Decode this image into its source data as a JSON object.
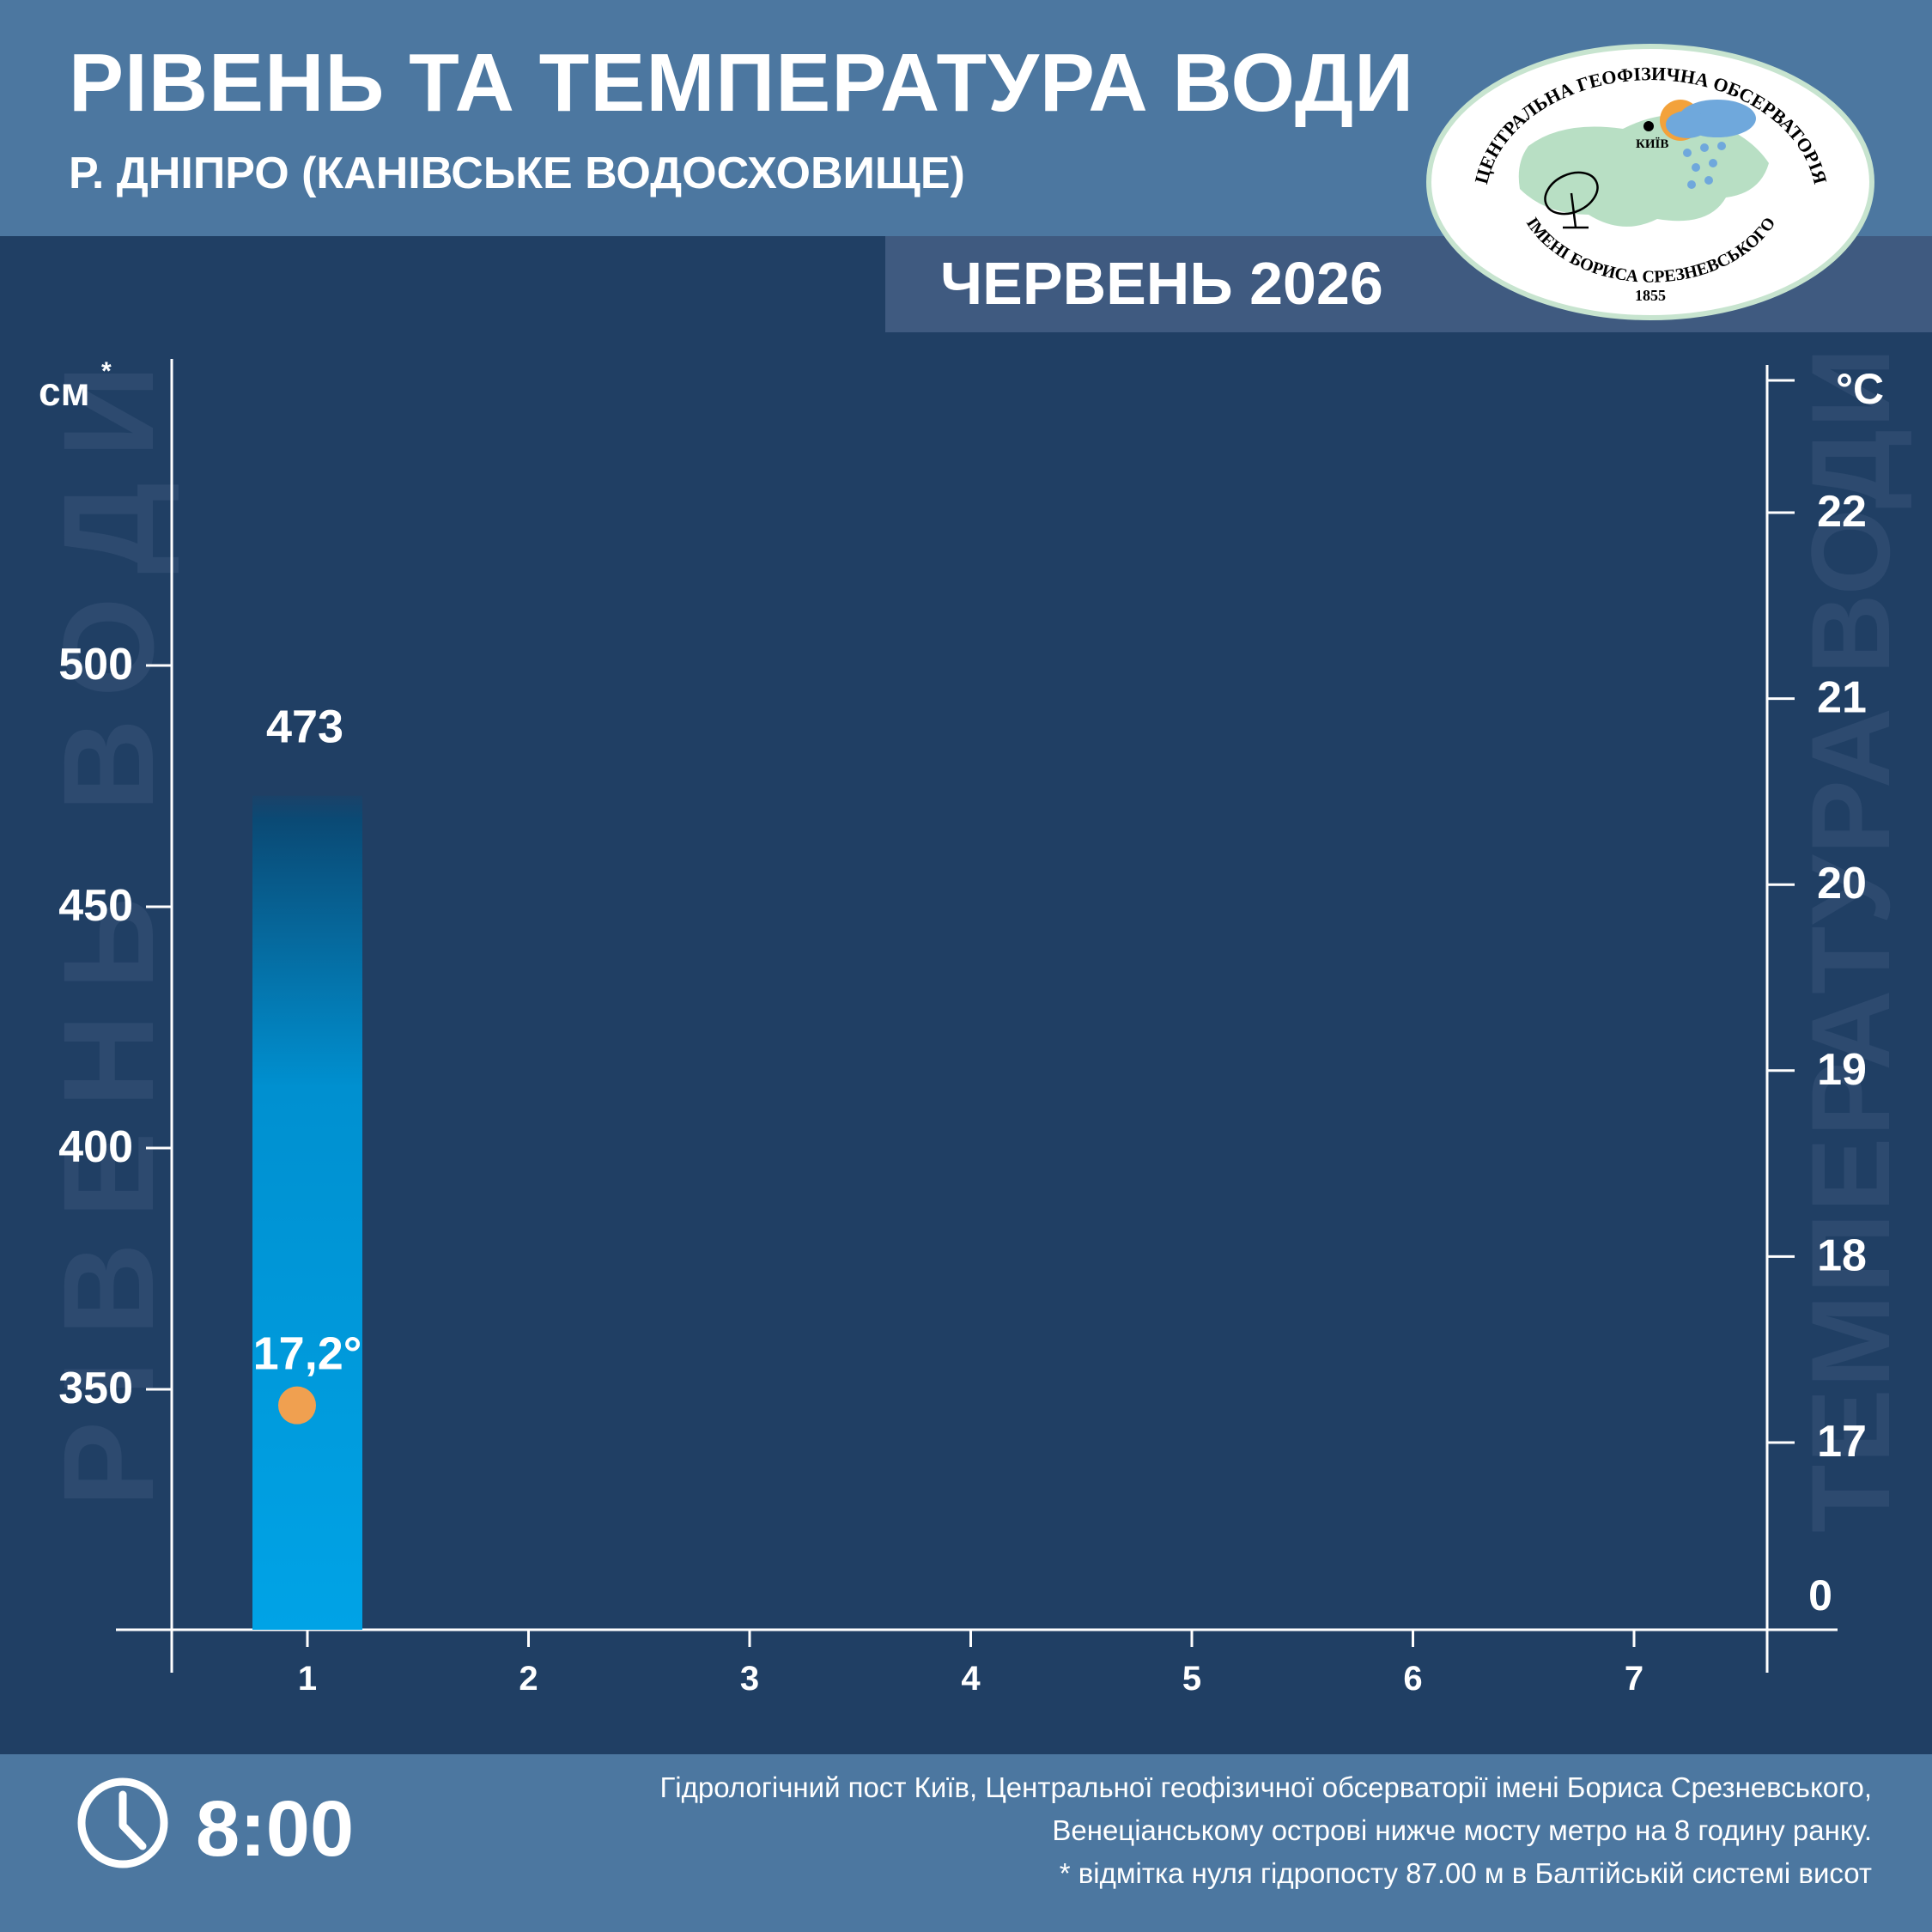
{
  "header": {
    "title": "РІВЕНЬ ТА ТЕМПЕРАТУРА ВОДИ",
    "subtitle": "Р. ДНІПРО (КАНІВСЬКЕ ВОДОСХОВИЩЕ)",
    "month": "ЧЕРВЕНЬ 2026"
  },
  "logo": {
    "top_text": "ЦЕНТРАЛЬНА ГЕОФІЗИЧНА ОБСЕРВАТОРІЯ",
    "bottom_text": "ІМЕНІ БОРИСА СРЕЗНЕВСЬКОГО",
    "year": "1855",
    "city": "КИЇВ"
  },
  "watermarks": {
    "left": "РІВЕНЬ ВОДИ",
    "right": "ТЕМПЕРАТУРА ВОДИ"
  },
  "footer": {
    "time": "8:00",
    "note_line1": "Гідрологічний пост Київ, Центральної геофізичної обсерваторії імені Бориса Срезневського,",
    "note_line2": "Венеціанському острові нижче мосту метро  на 8 годину ранку.",
    "note_line3": "* відмітка нуля гідропосту 87.00 м в Балтійській системі висот"
  },
  "colors": {
    "background": "#203f64",
    "band": "#4c77a0",
    "bar_top": "#0a4a75",
    "bar_bottom": "#00a3e6",
    "temp_marker": "#f0a050"
  },
  "chart_data": {
    "type": "bar",
    "x": [
      1,
      2,
      3,
      4,
      5,
      6,
      7
    ],
    "level": {
      "unit": "см*",
      "values": [
        473
      ],
      "labels": [
        "473"
      ],
      "y_ticks": [
        350,
        400,
        450,
        500
      ],
      "y_tick_labels": [
        "350",
        "400",
        "450",
        "500"
      ],
      "ylim": [
        307,
        563
      ]
    },
    "temperature": {
      "unit": "°C",
      "values": [
        17.2
      ],
      "labels": [
        "17,2°"
      ],
      "y_ticks": [
        17,
        18,
        19,
        20,
        21,
        22
      ],
      "y_tick_labels": [
        "17",
        "18",
        "19",
        "20",
        "21",
        "22"
      ],
      "baseline_label": "0"
    }
  }
}
